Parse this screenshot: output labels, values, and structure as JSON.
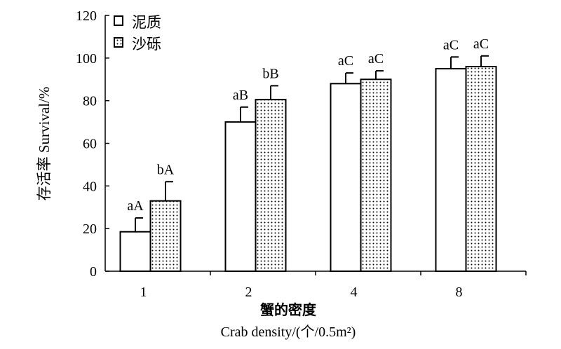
{
  "chart_data": {
    "type": "bar",
    "categories": [
      "1",
      "2",
      "4",
      "8"
    ],
    "series": [
      {
        "name": "泥质",
        "values": [
          18.5,
          70,
          88,
          95
        ],
        "errors": [
          6.5,
          7,
          5,
          5.5
        ],
        "labels": [
          "aA",
          "aB",
          "aC",
          "aC"
        ],
        "pattern": "white"
      },
      {
        "name": "沙砾",
        "values": [
          33,
          80.5,
          90,
          96
        ],
        "errors": [
          9,
          6.5,
          4,
          5
        ],
        "labels": [
          "bA",
          "bB",
          "aC",
          "aC"
        ],
        "pattern": "dotted"
      }
    ],
    "ylabel": "存活率 Survival/%",
    "xlabel_cn": "蟹的密度",
    "xlabel_en": "Crab density/(个/0.5m²)",
    "ylim": [
      0,
      120
    ],
    "yticks": [
      0,
      20,
      40,
      60,
      80,
      100,
      120
    ],
    "legend_position": "top-left",
    "grid": false
  }
}
